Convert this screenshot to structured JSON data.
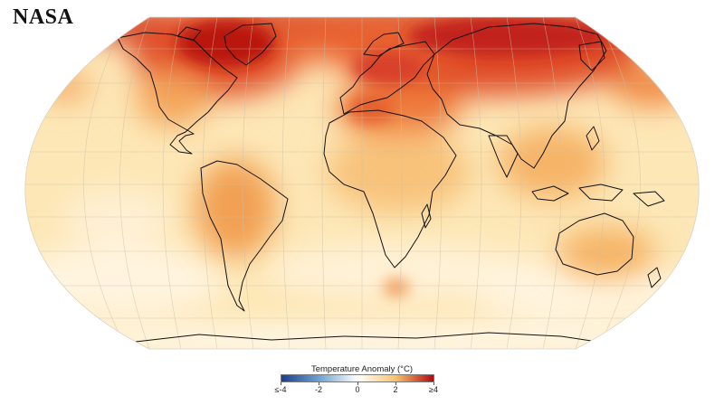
{
  "brand": {
    "logo_text": "NASA"
  },
  "legend": {
    "title": "Temperature Anomaly (°C)",
    "ticks": [
      "≤-4",
      "-2",
      "0",
      "2",
      "≥4"
    ],
    "colors": [
      "#1c3f8c",
      "#6fa3d2",
      "#ffffff",
      "#f7c46a",
      "#b10a0f"
    ]
  },
  "map": {
    "projection": "robinson",
    "base_color": "#fde7b6",
    "coast_color": "#111111",
    "grid_color": "#c9c0aa"
  }
}
